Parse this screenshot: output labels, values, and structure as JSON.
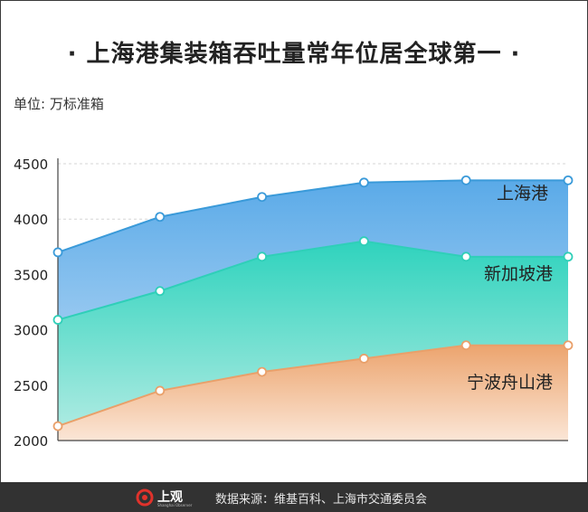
{
  "title": "· 上海港集装箱吞吐量常年位居全球第一 ·",
  "unit_label": "单位: 万标准箱",
  "footer": {
    "logo_text": "上观",
    "logo_subtext": "Shanghai Observer",
    "source": "数据来源：维基百科、上海市交通委员会"
  },
  "colors": {
    "shanghai": "#3a9ad9",
    "singapore": "#2fcfb8",
    "ningbo": "#e9a06a",
    "footer_bg": "#323232"
  },
  "chart_data": {
    "type": "area",
    "title": "· 上海港集装箱吞吐量常年位居全球第一 ·",
    "ylabel": "单位: 万标准箱",
    "xlabel": "",
    "ylim": [
      2000,
      4500
    ],
    "yticks": [
      2000,
      2500,
      3000,
      3500,
      4000,
      4500
    ],
    "x": [
      1,
      2,
      3,
      4,
      5,
      6
    ],
    "grid": true,
    "series": [
      {
        "name": "上海港",
        "values": [
          3700,
          4020,
          4200,
          4330,
          4350,
          4350
        ]
      },
      {
        "name": "新加坡港",
        "values": [
          3090,
          3350,
          3660,
          3800,
          3660,
          3660
        ]
      },
      {
        "name": "宁波舟山港",
        "values": [
          2130,
          2450,
          2620,
          2740,
          2860,
          2860
        ]
      }
    ]
  }
}
